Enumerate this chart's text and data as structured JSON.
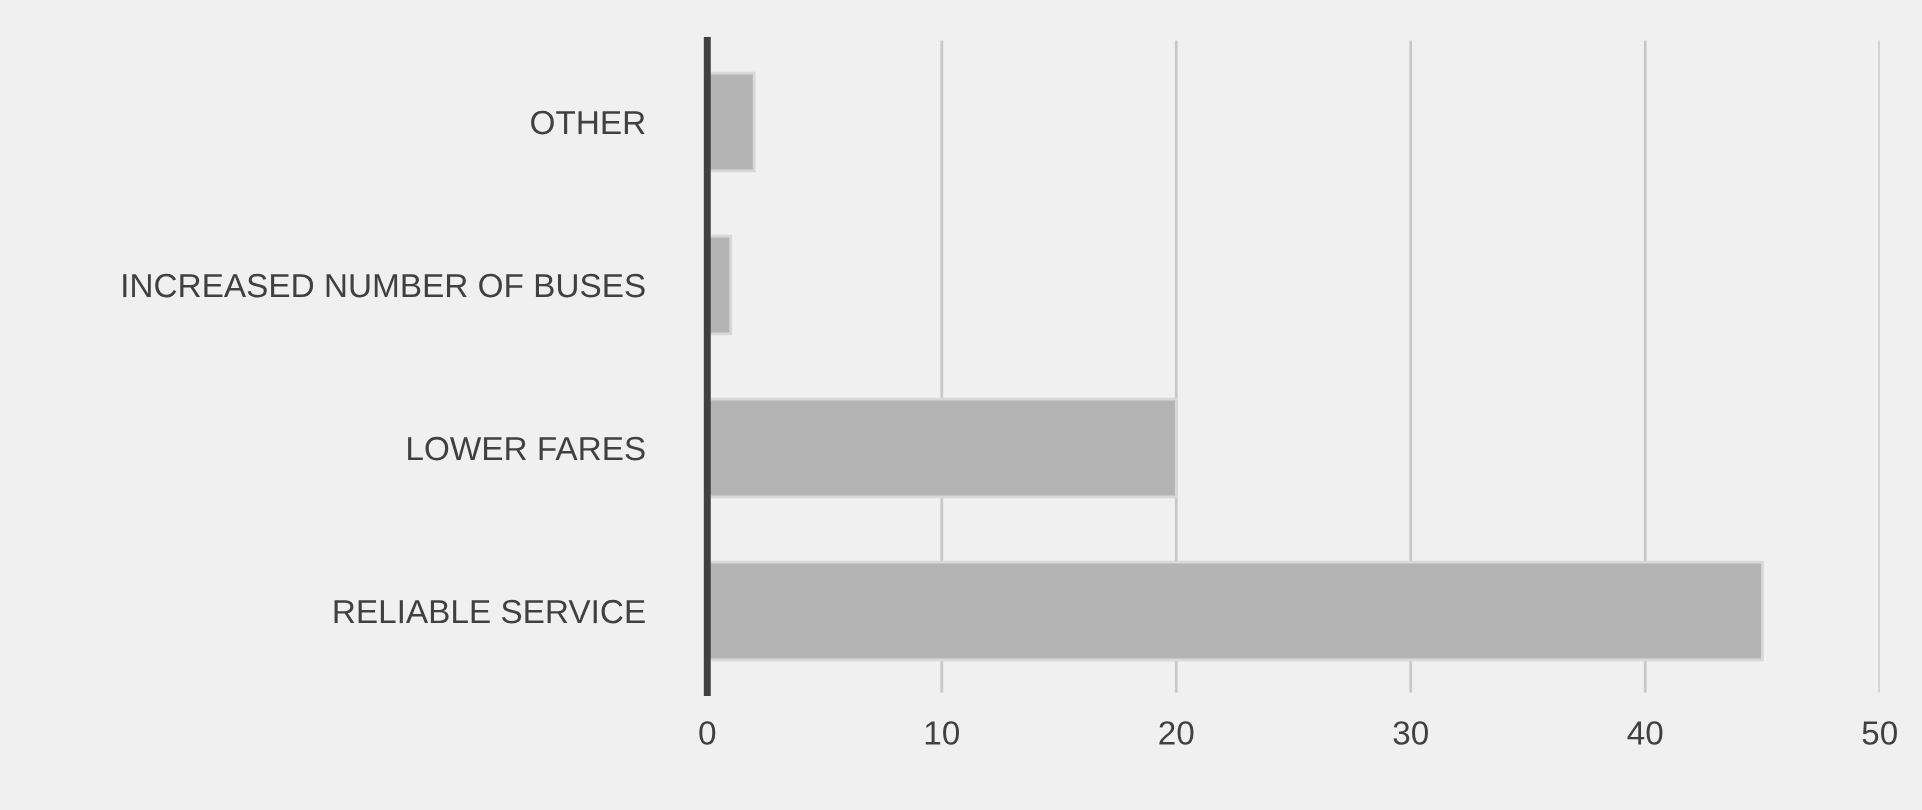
{
  "chart_data": {
    "type": "bar",
    "orientation": "horizontal",
    "categories": [
      "OTHER",
      "INCREASED NUMBER OF BUSES",
      "LOWER FARES",
      "RELIABLE SERVICE"
    ],
    "values": [
      2,
      1,
      20,
      45
    ],
    "color": "#b4b4b4",
    "xlim": [
      0,
      50
    ],
    "xticks": [
      0,
      10,
      20,
      30,
      40,
      50
    ],
    "grid": "x",
    "legend": false
  }
}
